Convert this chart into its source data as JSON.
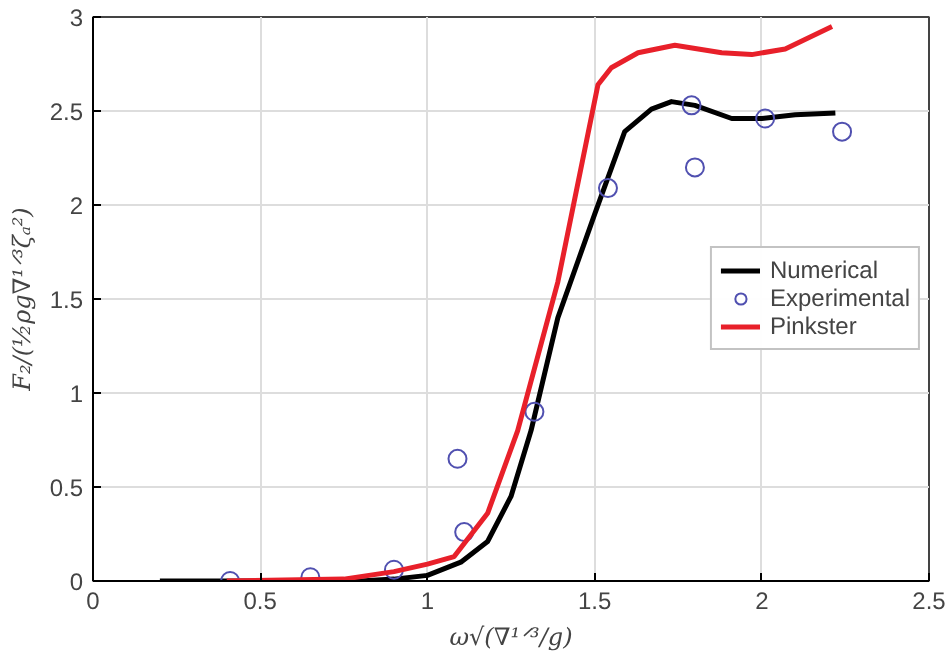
{
  "chart_data": {
    "type": "line",
    "xlabel": "ω√(∇¹ᐟ³/g)",
    "ylabel": "F₂/(½ρg∇¹ᐟ³ζₐ²)",
    "xlim": [
      0,
      2.5
    ],
    "ylim": [
      0,
      3
    ],
    "xticks": [
      0,
      0.5,
      1,
      1.5,
      2,
      2.5
    ],
    "yticks": [
      0,
      0.5,
      1,
      1.5,
      2,
      2.5,
      3
    ],
    "grid": true,
    "legend": "right",
    "series": [
      {
        "name": "Numerical",
        "color": "#000000",
        "x": [
          0.2,
          0.8,
          0.9,
          1.0,
          1.1,
          1.18,
          1.25,
          1.31,
          1.39,
          1.5,
          1.59,
          1.67,
          1.73,
          1.8,
          1.91,
          2.0,
          2.1,
          2.22
        ],
        "values": [
          0,
          0,
          0.01,
          0.03,
          0.1,
          0.21,
          0.45,
          0.8,
          1.4,
          1.95,
          2.39,
          2.51,
          2.55,
          2.53,
          2.46,
          2.46,
          2.48,
          2.49
        ]
      },
      {
        "name": "Experimental",
        "type": "scatter",
        "marker": "circle",
        "color": "#5050b0",
        "x": [
          0.41,
          0.65,
          0.9,
          1.09,
          1.11,
          1.32,
          1.54,
          1.79,
          1.8,
          2.01,
          2.24
        ],
        "values": [
          0,
          0.02,
          0.06,
          0.65,
          0.26,
          0.9,
          2.09,
          2.53,
          2.2,
          2.46,
          2.39
        ]
      },
      {
        "name": "Pinkster",
        "color": "#e8202a",
        "x": [
          0.4,
          0.75,
          0.9,
          1.0,
          1.08,
          1.18,
          1.27,
          1.39,
          1.51,
          1.55,
          1.63,
          1.74,
          1.88,
          1.97,
          2.07,
          2.21
        ],
        "values": [
          0,
          0.01,
          0.05,
          0.09,
          0.13,
          0.36,
          0.8,
          1.59,
          2.64,
          2.73,
          2.81,
          2.85,
          2.81,
          2.8,
          2.83,
          2.95
        ]
      }
    ]
  }
}
